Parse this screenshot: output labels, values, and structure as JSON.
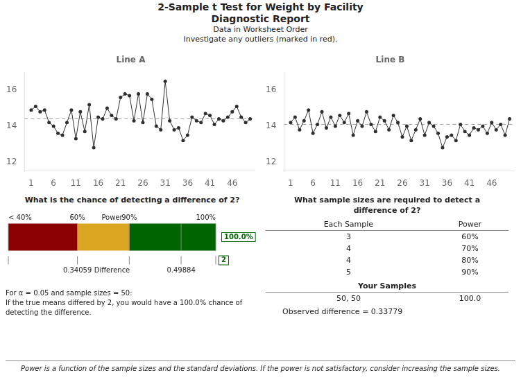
{
  "title": [
    "2-Sample t Test for Weight by Facility",
    "Diagnostic Report"
  ],
  "subtitle": [
    "Data in Worksheet Order",
    "Investigate any outliers (marked in red)."
  ],
  "chart_data": [
    {
      "type": "line",
      "title": "Line A",
      "x": [
        1,
        2,
        3,
        4,
        5,
        6,
        7,
        8,
        9,
        10,
        11,
        12,
        13,
        14,
        15,
        16,
        17,
        18,
        19,
        20,
        21,
        22,
        23,
        24,
        25,
        26,
        27,
        28,
        29,
        30,
        31,
        32,
        33,
        34,
        35,
        36,
        37,
        38,
        39,
        40,
        41,
        42,
        43,
        44,
        45,
        46,
        47,
        48,
        49,
        50
      ],
      "values": [
        14.9,
        15.1,
        14.8,
        14.9,
        14.2,
        14.0,
        13.6,
        13.5,
        14.2,
        14.9,
        13.3,
        14.8,
        13.7,
        15.2,
        12.8,
        14.5,
        14.4,
        15.0,
        14.6,
        14.4,
        15.6,
        15.8,
        15.7,
        14.3,
        15.8,
        14.2,
        15.8,
        15.5,
        14.0,
        13.8,
        16.5,
        14.3,
        13.8,
        13.9,
        13.2,
        13.5,
        14.5,
        14.3,
        14.2,
        14.7,
        14.6,
        14.1,
        14.4,
        14.3,
        14.5,
        14.8,
        15.1,
        14.5,
        14.2,
        14.4
      ],
      "color": "#2F2F2F",
      "marker": "circle",
      "xlim": [
        -0.5,
        51
      ],
      "xticks": [
        1,
        6,
        11,
        16,
        21,
        26,
        31,
        36,
        41,
        46
      ],
      "ylim": [
        11.5,
        17.0
      ],
      "yticks": [
        12,
        14,
        16
      ],
      "grid": false,
      "annotations": [
        {
          "type": "hline",
          "y": 14.44,
          "color": "#A0A0A0",
          "line_style": "dashed"
        }
      ]
    },
    {
      "type": "line",
      "title": "Line B",
      "x": [
        1,
        2,
        3,
        4,
        5,
        6,
        7,
        8,
        9,
        10,
        11,
        12,
        13,
        14,
        15,
        16,
        17,
        18,
        19,
        20,
        21,
        22,
        23,
        24,
        25,
        26,
        27,
        28,
        29,
        30,
        31,
        32,
        33,
        34,
        35,
        36,
        37,
        38,
        39,
        40,
        41,
        42,
        43,
        44,
        45,
        46,
        47,
        48,
        49,
        50
      ],
      "values": [
        14.2,
        14.5,
        13.8,
        14.3,
        14.9,
        13.6,
        14.1,
        14.8,
        13.9,
        14.5,
        14.0,
        14.6,
        14.2,
        14.7,
        13.5,
        14.3,
        14.0,
        14.8,
        14.1,
        13.7,
        14.5,
        14.3,
        13.8,
        14.6,
        14.2,
        13.4,
        14.0,
        13.2,
        13.8,
        14.4,
        13.5,
        14.2,
        14.0,
        13.6,
        12.8,
        13.4,
        13.5,
        13.2,
        14.1,
        13.7,
        13.5,
        13.9,
        13.8,
        14.0,
        13.6,
        14.2,
        13.8,
        14.1,
        13.5,
        14.4
      ],
      "color": "#2F2F2F",
      "marker": "circle",
      "xlim": [
        -0.5,
        51
      ],
      "xticks": [
        1,
        6,
        11,
        16,
        21,
        26,
        31,
        36,
        41,
        46
      ],
      "ylim": [
        11.5,
        17.0
      ],
      "yticks": [
        12,
        14,
        16
      ],
      "grid": false,
      "annotations": [
        {
          "type": "hline",
          "y": 14.1,
          "color": "#A0A0A0",
          "line_style": "dashed"
        }
      ]
    },
    {
      "type": "bar",
      "orientation": "horizontal",
      "stacked": true,
      "title": "What is the chance of detecting a difference of 2?",
      "series": [
        {
          "values": [
            0.333
          ],
          "color": "#8B0000"
        },
        {
          "values": [
            0.25
          ],
          "color": "#DAA520"
        },
        {
          "values": [
            0.417
          ],
          "color": "#006400"
        }
      ],
      "xlim": [
        0,
        1.0
      ],
      "tick_labels": false,
      "dividers": [
        0.0,
        0.333,
        0.583,
        0.833,
        1.0
      ],
      "annotations": [
        {
          "text": "< 40%",
          "x": 0.0
        },
        {
          "text": "60%",
          "x": 0.333
        },
        {
          "text": "Power",
          "x": 0.5
        },
        {
          "text": "90%",
          "x": 0.583
        },
        {
          "text": "100%",
          "x": 1.0
        },
        {
          "text": "100.0%",
          "x": 1.0,
          "color": "#006400"
        }
      ],
      "ruler_annotations": [
        {
          "text": "0.34059",
          "x": 0.333
        },
        {
          "text": "Difference",
          "x": 0.5
        },
        {
          "text": "0.49884",
          "x": 0.833
        },
        {
          "text": "2",
          "x": 1.0,
          "color": "#006400"
        }
      ],
      "footnotes": [
        "For α = 0.05 and sample sizes = 50:",
        "If the true means differed by 2, you would have a 100.0% chance of",
        "detecting the difference."
      ]
    }
  ],
  "table": {
    "title": [
      "What sample sizes are required to detect a",
      "difference of 2?"
    ],
    "columns": [
      "Each Sample",
      "Power"
    ],
    "rows": [
      [
        3,
        "60%"
      ],
      [
        4,
        "70%"
      ],
      [
        4,
        "80%"
      ],
      [
        5,
        "90%"
      ]
    ],
    "your_samples_label": "Your Samples",
    "your_samples": [
      "50, 50",
      "100.0"
    ],
    "note": "Observed difference = 0.33779"
  },
  "bottom_note": "Power is a function of the sample sizes and the standard deviations. If the power is not satisfactory, consider increasing the sample sizes."
}
